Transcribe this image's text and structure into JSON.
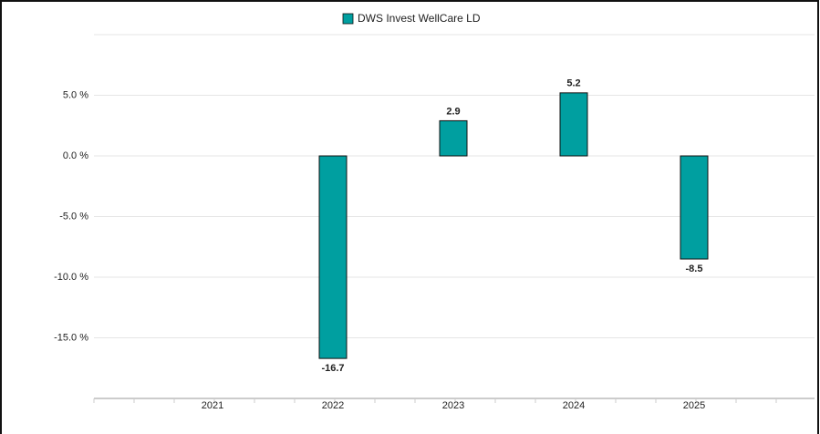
{
  "chart_data": {
    "type": "bar",
    "categories": [
      "2021",
      "2022",
      "2023",
      "2024",
      "2025"
    ],
    "series": [
      {
        "name": "DWS Invest WellCare LD",
        "color": "#009fa0",
        "values": [
          null,
          -16.7,
          2.9,
          5.2,
          -8.5
        ]
      }
    ],
    "ylim": [
      -20,
      10
    ],
    "yticks": [
      {
        "value": -15,
        "label": "-15.0 %"
      },
      {
        "value": -10,
        "label": "-10.0 %"
      },
      {
        "value": -5,
        "label": "-5.0 %"
      },
      {
        "value": 0,
        "label": "0.0 %"
      },
      {
        "value": 5,
        "label": "5.0 %"
      }
    ],
    "grid": true,
    "legend": "top"
  }
}
